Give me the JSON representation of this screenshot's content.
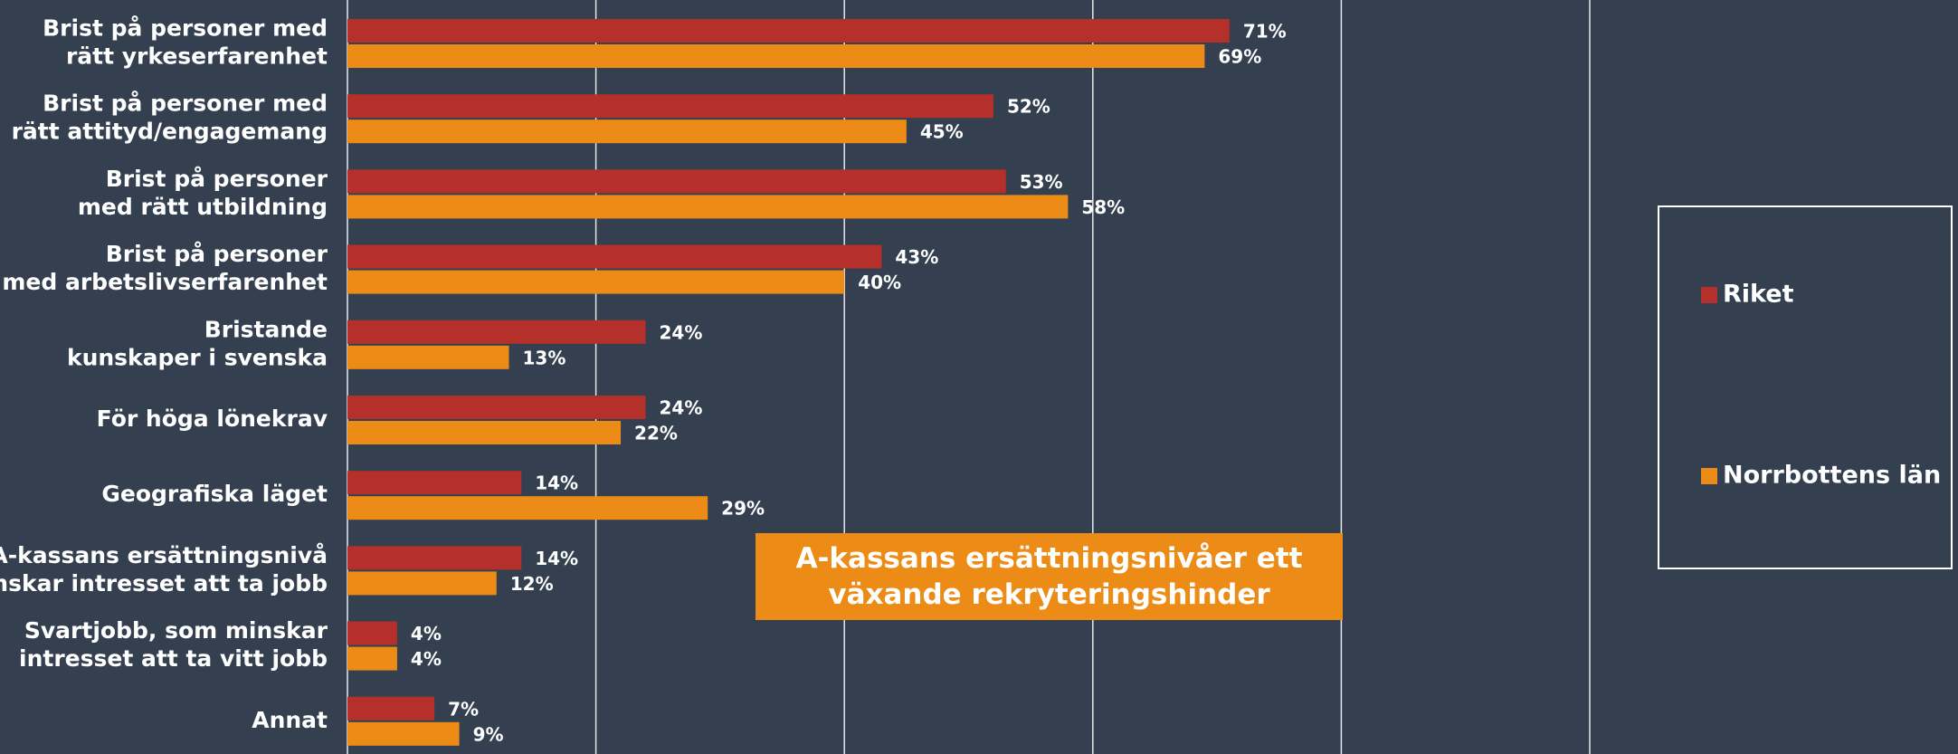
{
  "chart_data": {
    "type": "bar",
    "orientation": "horizontal",
    "categories": [
      [
        "Brist på personer med",
        "rätt yrkeserfarenhet"
      ],
      [
        "Brist på personer med",
        "rätt attityd/engagemang"
      ],
      [
        "Brist på personer",
        "med rätt utbildning"
      ],
      [
        "Brist på personer",
        "med arbetslivserfarenhet"
      ],
      [
        "Bristande",
        "kunskaper i svenska"
      ],
      [
        "För höga lönekrav"
      ],
      [
        "Geografiska läget"
      ],
      [
        "A-kassans ersättningsnivå",
        "minskar intresset att ta jobb"
      ],
      [
        "Svartjobb, som minskar",
        "intresset att ta vitt jobb"
      ],
      [
        "Annat"
      ]
    ],
    "series": [
      {
        "name": "Riket",
        "color": "#b5302a",
        "values": [
          71,
          52,
          53,
          43,
          24,
          24,
          14,
          14,
          4,
          7
        ],
        "value_labels": [
          "71%",
          "52%",
          "53%",
          "43%",
          "24%",
          "24%",
          "14%",
          "14%",
          "4%",
          "7%"
        ]
      },
      {
        "name": "Norrbottens län",
        "color": "#ec8c16",
        "values": [
          69,
          45,
          58,
          40,
          13,
          22,
          29,
          12,
          4,
          9
        ],
        "value_labels": [
          "69%",
          "45%",
          "58%",
          "40%",
          "13%",
          "22%",
          "29%",
          "12%",
          "4%",
          "9%"
        ]
      }
    ],
    "xlim": [
      0,
      100
    ],
    "xticks": [
      0,
      20,
      40,
      60,
      80,
      100
    ],
    "grid": true,
    "annotation": "A-kassans ersättningsnivåer ett växande rekryteringshinder"
  }
}
